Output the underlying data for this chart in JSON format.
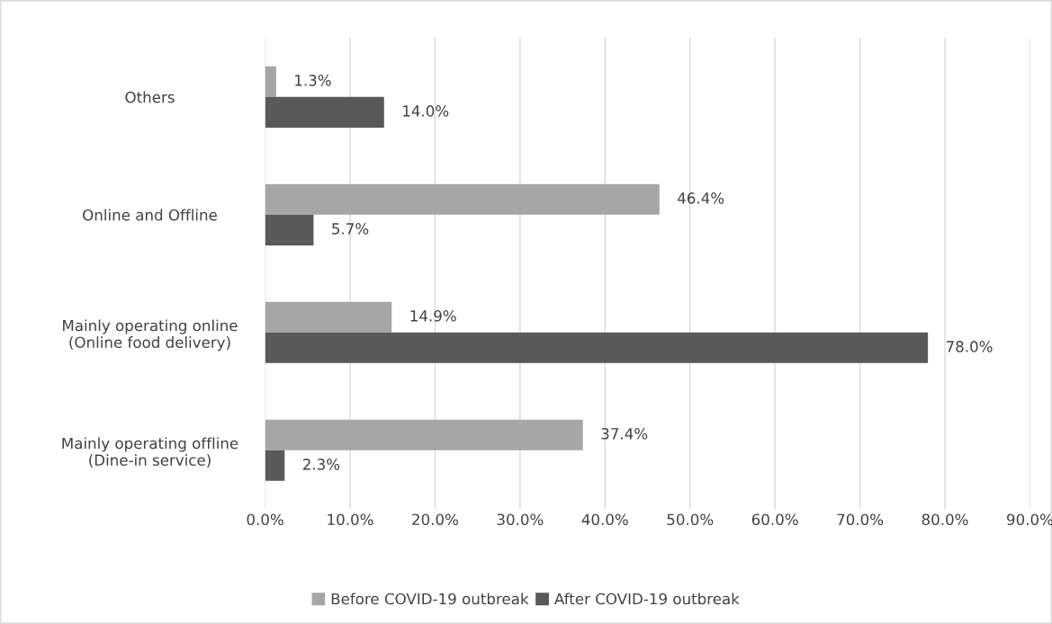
{
  "chart_data": {
    "type": "bar",
    "orientation": "horizontal",
    "categories": [
      "Others",
      "Online and Offline",
      "Mainly operating online\n(Online food delivery)",
      "Mainly operating offline\n(Dine-in service)"
    ],
    "series": [
      {
        "name": "Before COVID-19 outbreak",
        "color": "#a6a6a6",
        "values": [
          1.3,
          46.4,
          14.9,
          37.4
        ],
        "value_labels": [
          "1.3%",
          "46.4%",
          "14.9%",
          "37.4%"
        ]
      },
      {
        "name": "After COVID-19 outbreak",
        "color": "#595959",
        "values": [
          14.0,
          5.7,
          78.0,
          2.3
        ],
        "value_labels": [
          "14.0%",
          "5.7%",
          "78.0%",
          "2.3%"
        ]
      }
    ],
    "xlim": [
      0,
      90
    ],
    "xticks": [
      {
        "value": 0,
        "label": "0.0%"
      },
      {
        "value": 10,
        "label": "10.0%"
      },
      {
        "value": 20,
        "label": "20.0%"
      },
      {
        "value": 30,
        "label": "30.0%"
      },
      {
        "value": 40,
        "label": "40.0%"
      },
      {
        "value": 50,
        "label": "50.0%"
      },
      {
        "value": 60,
        "label": "60.0%"
      },
      {
        "value": 70,
        "label": "70.0%"
      },
      {
        "value": 80,
        "label": "80.0%"
      },
      {
        "value": 90,
        "label": "90.0%"
      }
    ],
    "grid": "x",
    "legend": "bottom"
  }
}
